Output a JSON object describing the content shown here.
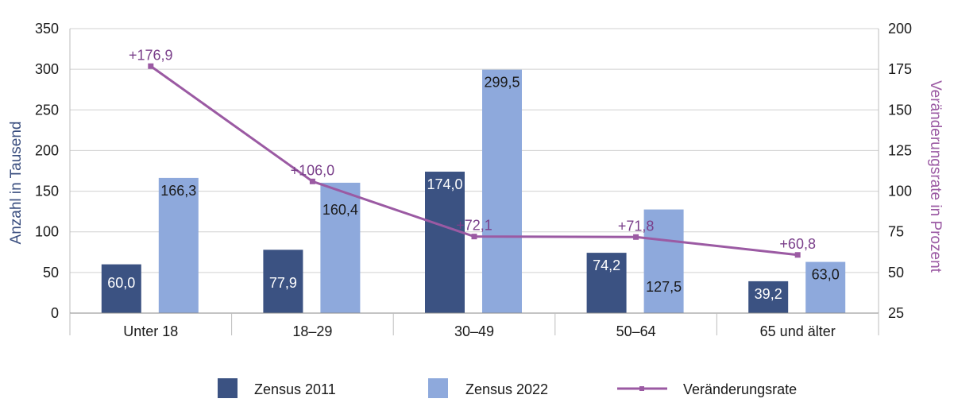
{
  "chart_data": {
    "type": "bar",
    "categories": [
      "Unter 18",
      "18–29",
      "30–49",
      "50–64",
      "65 und älter"
    ],
    "series": [
      {
        "name": "Zensus 2011",
        "type": "bar",
        "axis": "left",
        "color": "#3b5282",
        "values": [
          60.0,
          77.9,
          174.0,
          74.2,
          39.2
        ],
        "labels": [
          "60,0",
          "77,9",
          "174,0",
          "74,2",
          "39,2"
        ]
      },
      {
        "name": "Zensus 2022",
        "type": "bar",
        "axis": "left",
        "color": "#8ea9dc",
        "values": [
          166.3,
          160.4,
          299.5,
          127.5,
          63.0
        ],
        "labels": [
          "166,3",
          "160,4",
          "299,5",
          "127,5",
          "63,0"
        ]
      },
      {
        "name": "Veränderungsrate",
        "type": "line",
        "axis": "right",
        "color": "#9b5aa3",
        "values": [
          176.9,
          106.0,
          72.1,
          71.8,
          60.8
        ],
        "labels": [
          "+176,9",
          "+106,0",
          "+72,1",
          "+71,8",
          "+60,8"
        ]
      }
    ],
    "ylabel": "Anzahl  in Tausend",
    "ylabel_right": "Veränderungsrate in Prozent",
    "ylim": [
      0,
      350
    ],
    "yticks": [
      0,
      50,
      100,
      150,
      200,
      250,
      300,
      350
    ],
    "ylim_right": [
      25,
      200
    ],
    "yticks_right": [
      25,
      50,
      75,
      100,
      125,
      150,
      175,
      200
    ],
    "grid": true,
    "legend_position": "bottom"
  }
}
